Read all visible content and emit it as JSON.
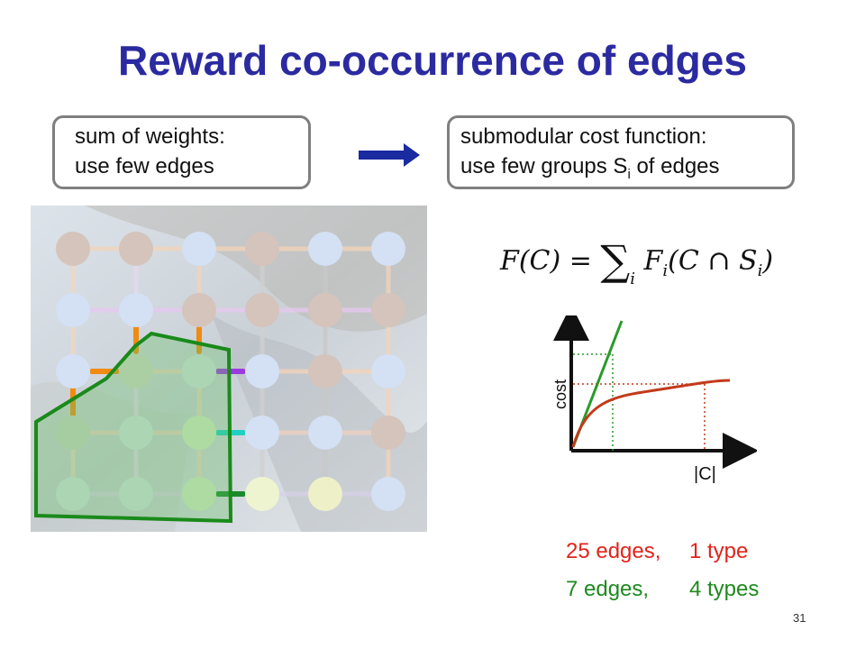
{
  "title": "Reward co-occurrence of edges",
  "left_box": {
    "line1": "sum of weights:",
    "line2": "use few edges"
  },
  "right_box": {
    "line1": "submodular cost function:",
    "line2_prefix": "use few groups S",
    "line2_sub": "i",
    "line2_suffix": " of edges"
  },
  "formula": {
    "lhs": "F(C) = ",
    "sum": "∑",
    "sum_index": "i",
    "rhs": "F",
    "rhs_sub": "i",
    "rhs_arg": "(C ∩ S",
    "rhs_arg_sub": "i",
    "rhs_close": ")"
  },
  "plot": {
    "y_label": "cost",
    "x_label": "|C|"
  },
  "stats": [
    {
      "edges": "25 edges,",
      "types": "1 type"
    },
    {
      "edges": "7 edges,",
      "types": "4 types"
    }
  ],
  "page_number": "31",
  "colors": {
    "title": "#2b2aa0",
    "arrow": "#1a2aa0",
    "red_curve": "#c23a1a",
    "green_line": "#2a9a2a",
    "stat_red": "#e0241b",
    "stat_green": "#1e8a1e"
  }
}
